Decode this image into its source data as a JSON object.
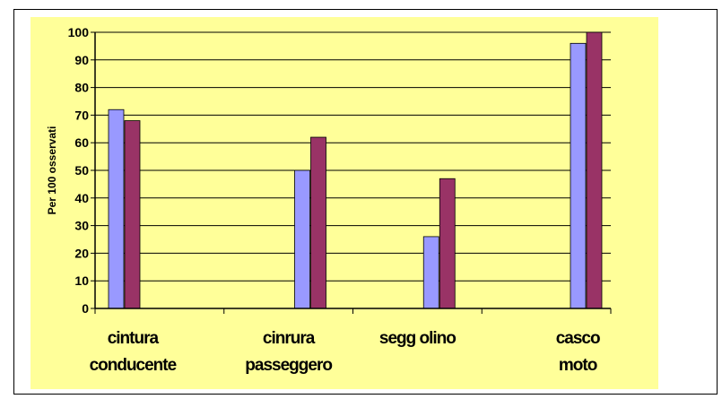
{
  "colors": {
    "plot_background": "#FFFF99",
    "series_1": "#9999FF",
    "series_2": "#993366",
    "gridline": "#000000",
    "axis": "#000000"
  },
  "chart_data": {
    "type": "bar",
    "title": "",
    "xlabel": "",
    "ylabel": "Per 100 osservati",
    "ylim": [
      0,
      100
    ],
    "yticks": [
      0,
      10,
      20,
      30,
      40,
      50,
      60,
      70,
      80,
      90,
      100
    ],
    "grid": true,
    "legend": "none",
    "categories": [
      [
        "cintura",
        "conducente"
      ],
      [
        "cinrura",
        "passeggero"
      ],
      [
        "segg olino",
        ""
      ],
      [
        "casco",
        "moto"
      ]
    ],
    "series": [
      {
        "values": [
          72,
          50,
          26,
          96
        ]
      },
      {
        "values": [
          68,
          62,
          47,
          100
        ]
      }
    ]
  }
}
